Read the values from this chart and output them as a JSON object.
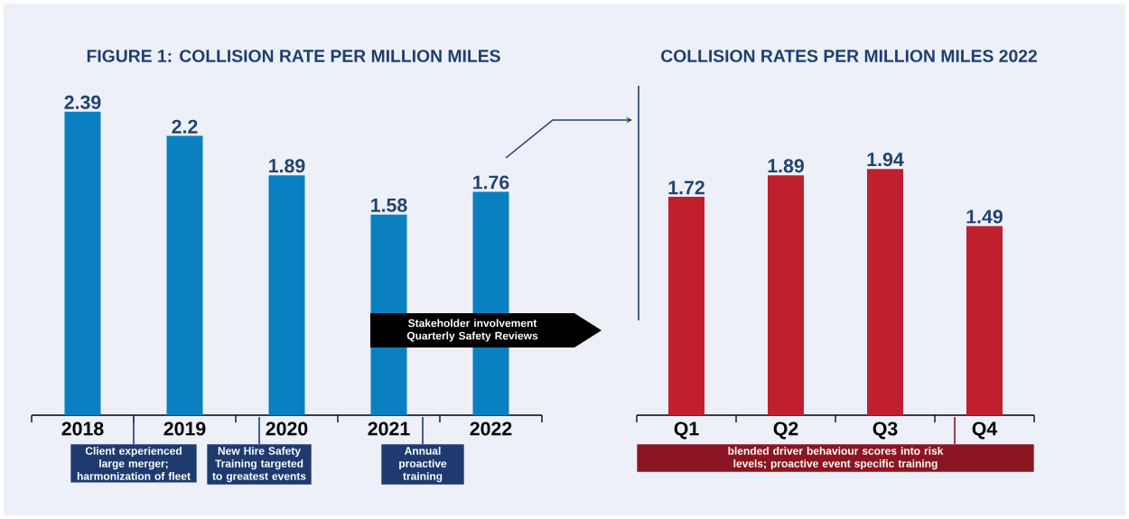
{
  "chart_data": [
    {
      "type": "bar",
      "title": "FIGURE 1: COLLISION RATE PER MILLION MILES",
      "categories": [
        "2018",
        "2019",
        "2020",
        "2021",
        "2022"
      ],
      "values": [
        2.39,
        2.2,
        1.89,
        1.58,
        1.76
      ],
      "color": "#0b80c0",
      "data_labels": true,
      "annotations": [
        "Client experienced large merger; harmonization of fleet",
        "New Hire Safety Training targeted to greatest events",
        "Annual proactive training",
        "Stakeholder involvement Quarterly Safety Reviews"
      ]
    },
    {
      "type": "bar",
      "title": "COLLISION RATES PER MILLION MILES 2022",
      "categories": [
        "Q1",
        "Q2",
        "Q3",
        "Q4"
      ],
      "values": [
        1.72,
        1.89,
        1.94,
        1.49
      ],
      "color": "#c0202e",
      "data_labels": true,
      "annotations": [
        "blended driver behaviour scores into risk levels; proactive event specific training"
      ]
    }
  ]
}
